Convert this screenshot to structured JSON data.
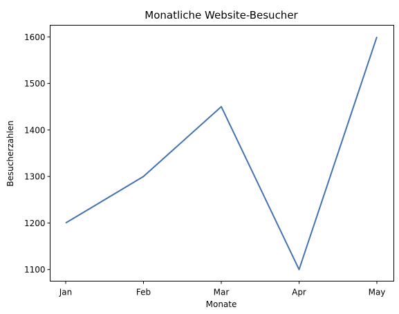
{
  "chart_data": {
    "type": "line",
    "title": "Monatliche Website-Besucher",
    "xlabel": "Monate",
    "ylabel": "Besucherzahlen",
    "categories": [
      "Jan",
      "Feb",
      "Mar",
      "Apr",
      "May"
    ],
    "series": [
      {
        "values": [
          1200,
          1300,
          1450,
          1100,
          1600
        ],
        "color": "#4472b0"
      }
    ],
    "ylim": [
      1075,
      1625
    ],
    "yticks": [
      1100,
      1200,
      1300,
      1400,
      1500,
      1600
    ],
    "grid": false,
    "legend": "none"
  }
}
